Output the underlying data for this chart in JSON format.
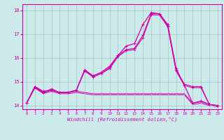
{
  "title": "",
  "xlabel": "Windchill (Refroidissement éolien,°C)",
  "xlim": [
    -0.5,
    23.5
  ],
  "ylim": [
    13.85,
    18.25
  ],
  "yticks": [
    14,
    15,
    16,
    17,
    18
  ],
  "xticks": [
    0,
    1,
    2,
    3,
    4,
    5,
    6,
    7,
    8,
    9,
    10,
    11,
    12,
    13,
    14,
    15,
    16,
    17,
    18,
    19,
    20,
    21,
    22,
    23
  ],
  "bg_color": "#cceaea",
  "grid_color": "#aacccc",
  "line_color": "#cc00aa",
  "line_main": [
    14.1,
    14.8,
    14.6,
    14.65,
    14.55,
    14.55,
    14.65,
    15.5,
    15.25,
    15.4,
    15.65,
    16.1,
    16.5,
    16.6,
    17.4,
    17.9,
    17.85,
    17.4,
    15.55,
    14.85,
    14.1,
    14.2,
    14.05,
    14.0
  ],
  "line2": [
    14.1,
    14.8,
    14.55,
    14.7,
    14.55,
    14.55,
    14.65,
    15.5,
    15.2,
    15.35,
    15.6,
    16.1,
    16.35,
    16.4,
    16.95,
    17.85,
    17.85,
    17.35,
    15.5,
    14.9,
    14.8,
    14.8,
    14.05,
    14.0
  ],
  "line3": [
    14.1,
    14.75,
    14.55,
    14.65,
    14.55,
    14.55,
    14.65,
    15.45,
    15.2,
    15.35,
    15.55,
    16.05,
    16.3,
    16.35,
    16.85,
    17.8,
    17.8,
    17.3,
    15.45,
    14.85,
    14.75,
    14.75,
    14.05,
    14.0
  ],
  "line_flat1": [
    14.1,
    14.75,
    14.55,
    14.65,
    14.55,
    14.55,
    14.6,
    14.55,
    14.5,
    14.5,
    14.5,
    14.5,
    14.5,
    14.5,
    14.5,
    14.5,
    14.5,
    14.5,
    14.5,
    14.5,
    14.1,
    14.15,
    14.05,
    14.0
  ],
  "line_flat2": [
    14.1,
    14.75,
    14.5,
    14.6,
    14.5,
    14.5,
    14.55,
    14.5,
    14.45,
    14.45,
    14.45,
    14.45,
    14.45,
    14.45,
    14.45,
    14.45,
    14.45,
    14.45,
    14.45,
    14.45,
    14.05,
    14.1,
    14.0,
    13.95
  ]
}
